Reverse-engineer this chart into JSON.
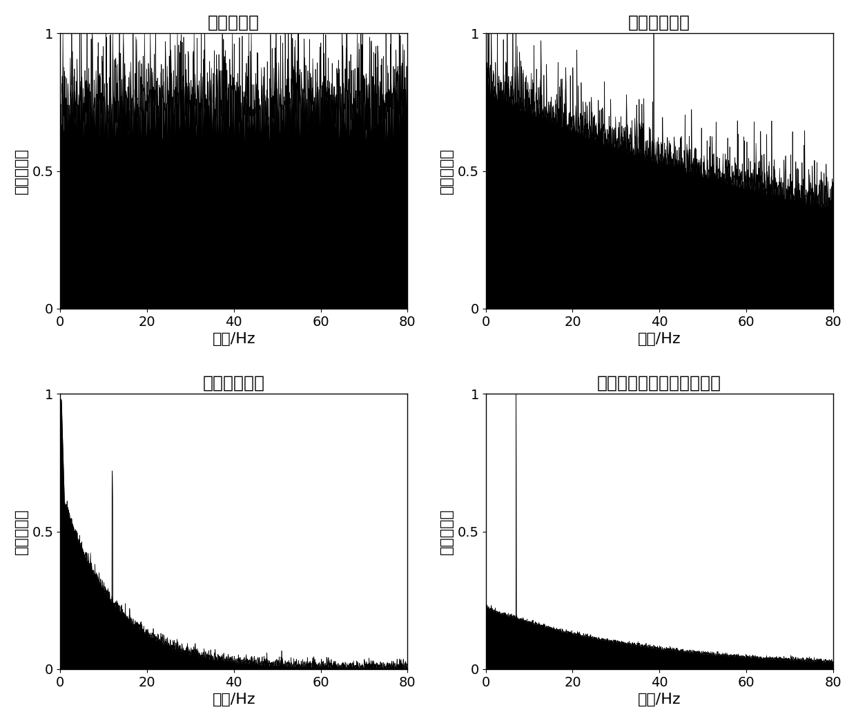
{
  "titles": [
    "模方谱方法",
    "小波变换方法",
    "随机共振方法",
    "随机共振联合小波变换方法"
  ],
  "ylabel": "归一化幅度",
  "xlabel_cn": "频率/",
  "xlabel_en": "Hz",
  "xlim": [
    0,
    80
  ],
  "ylim": [
    0,
    1
  ],
  "yticks": [
    0,
    0.5,
    1
  ],
  "xticks": [
    0,
    20,
    40,
    60,
    80
  ],
  "title_fontsize": 18,
  "label_fontsize": 16,
  "tick_fontsize": 14,
  "background_color": "#ffffff",
  "bar_color": "#000000",
  "n_points": 1500,
  "seed": 42
}
